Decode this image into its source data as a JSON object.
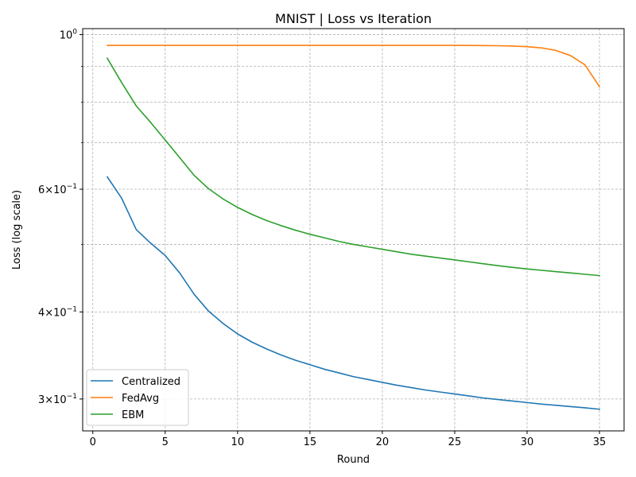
{
  "chart_data": {
    "type": "line",
    "title": "MNIST | Loss vs Iteration",
    "xlabel": "Round",
    "ylabel": "Loss (log scale)",
    "xlim": [
      -0.7,
      36.7
    ],
    "ylim": [
      0.27,
      1.02
    ],
    "yscale": "log",
    "grid": true,
    "grid_style": "dashed",
    "legend_position": "lower-left",
    "x_ticks": [
      0,
      5,
      10,
      15,
      20,
      25,
      30,
      35
    ],
    "x_tick_labels": [
      "0",
      "5",
      "10",
      "15",
      "20",
      "25",
      "30",
      "35"
    ],
    "y_major_ticks": [
      1.0,
      0.6,
      0.4,
      0.3
    ],
    "y_major_tick_labels": [
      "10^0",
      "6×10^-1",
      "4×10^-1",
      "3×10^-1"
    ],
    "y_minor_grid": [
      0.5,
      0.7,
      0.8,
      0.9
    ],
    "x": [
      1,
      2,
      3,
      4,
      5,
      6,
      7,
      8,
      9,
      10,
      11,
      12,
      13,
      14,
      15,
      16,
      17,
      18,
      19,
      20,
      21,
      22,
      23,
      24,
      25,
      26,
      27,
      28,
      29,
      30,
      31,
      32,
      33,
      34,
      35
    ],
    "series": [
      {
        "name": "Centralized",
        "color": "#1f77b4",
        "values": [
          0.625,
          0.582,
          0.525,
          0.502,
          0.482,
          0.455,
          0.424,
          0.401,
          0.385,
          0.372,
          0.362,
          0.354,
          0.347,
          0.341,
          0.336,
          0.331,
          0.327,
          0.323,
          0.32,
          0.317,
          0.314,
          0.3115,
          0.309,
          0.307,
          0.305,
          0.303,
          0.301,
          0.2995,
          0.298,
          0.2965,
          0.295,
          0.2938,
          0.2926,
          0.2914,
          0.29
        ]
      },
      {
        "name": "FedAvg",
        "color": "#ff7f0e",
        "values": [
          0.965,
          0.965,
          0.965,
          0.965,
          0.965,
          0.965,
          0.965,
          0.965,
          0.965,
          0.965,
          0.965,
          0.965,
          0.965,
          0.965,
          0.965,
          0.965,
          0.965,
          0.965,
          0.965,
          0.965,
          0.965,
          0.965,
          0.965,
          0.965,
          0.965,
          0.9648,
          0.9645,
          0.964,
          0.963,
          0.961,
          0.957,
          0.949,
          0.933,
          0.905,
          0.842
        ]
      },
      {
        "name": "EBM",
        "color": "#2ca02c",
        "values": [
          0.925,
          0.853,
          0.79,
          0.748,
          0.706,
          0.666,
          0.628,
          0.601,
          0.581,
          0.565,
          0.552,
          0.541,
          0.532,
          0.524,
          0.517,
          0.511,
          0.505,
          0.5,
          0.496,
          0.492,
          0.488,
          0.484,
          0.481,
          0.478,
          0.475,
          0.472,
          0.469,
          0.466,
          0.4635,
          0.461,
          0.459,
          0.457,
          0.455,
          0.453,
          0.451
        ]
      }
    ]
  }
}
